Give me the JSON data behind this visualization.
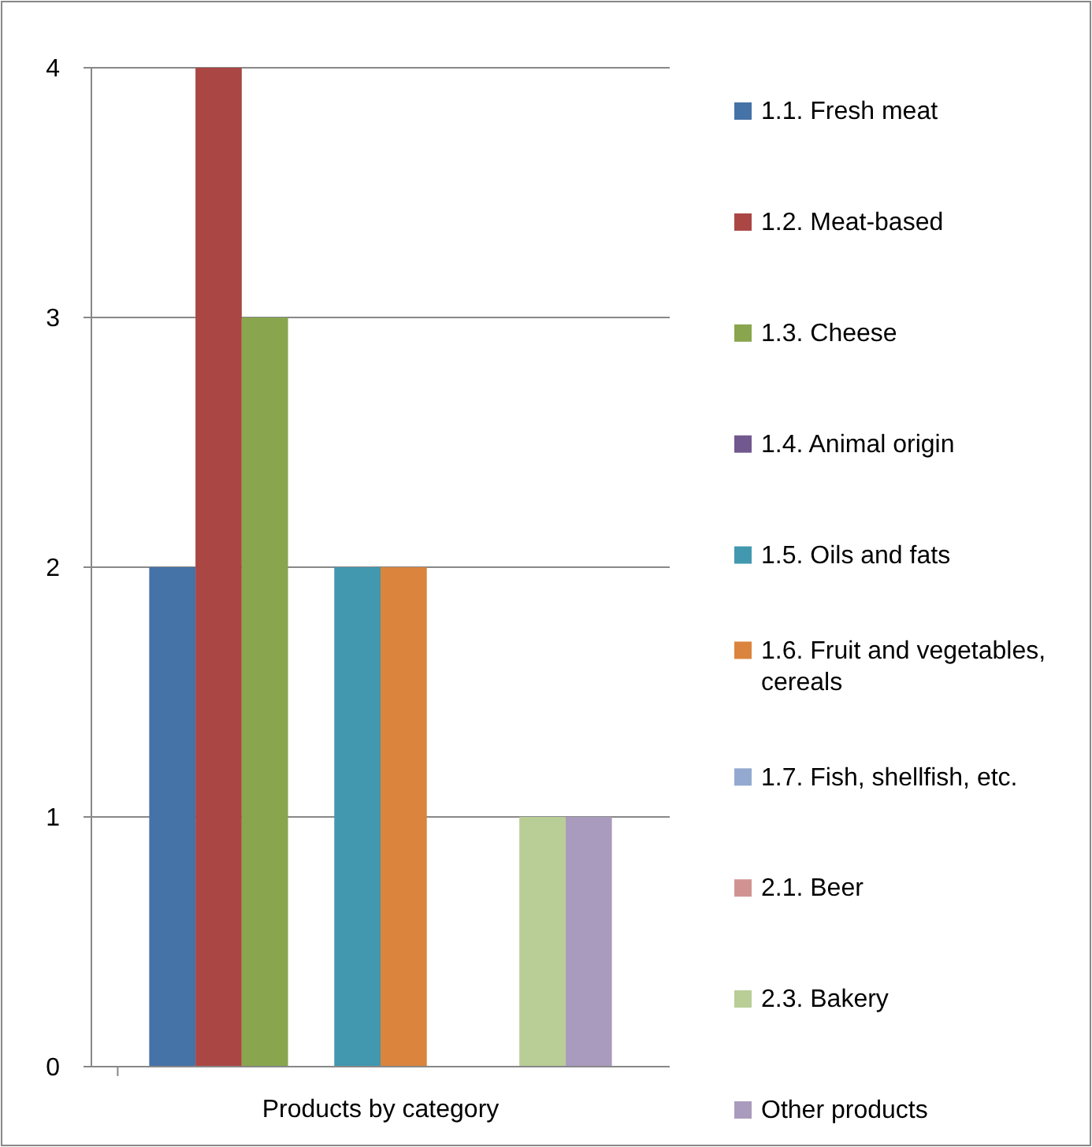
{
  "chart_data": {
    "type": "bar",
    "categories": [
      "Products by category"
    ],
    "series": [
      {
        "name": "1.1. Fresh meat",
        "color": "#4572a7",
        "values": [
          2
        ]
      },
      {
        "name": "1.2. Meat-based",
        "color": "#aa4643",
        "values": [
          4
        ]
      },
      {
        "name": "1.3. Cheese",
        "color": "#89a54e",
        "values": [
          3
        ]
      },
      {
        "name": "1.4. Animal origin",
        "color": "#71588f",
        "values": [
          0
        ]
      },
      {
        "name": "1.5. Oils and fats",
        "color": "#4198af",
        "values": [
          2
        ]
      },
      {
        "name": "1.6. Fruit and vegetables, cereals",
        "color": "#db843d",
        "values": [
          2
        ]
      },
      {
        "name": "1.7. Fish, shellfish, etc.",
        "color": "#93a9cf",
        "values": [
          0
        ]
      },
      {
        "name": "2.1. Beer",
        "color": "#d19392",
        "values": [
          0
        ]
      },
      {
        "name": "2.3. Bakery",
        "color": "#b9cd96",
        "values": [
          1
        ]
      },
      {
        "name": "Other products",
        "color": "#a99bbd",
        "values": [
          1
        ]
      }
    ],
    "ylim": [
      0,
      4
    ],
    "yticks": [
      0,
      1,
      2,
      3,
      4
    ],
    "grid": "y",
    "legend": "right"
  }
}
